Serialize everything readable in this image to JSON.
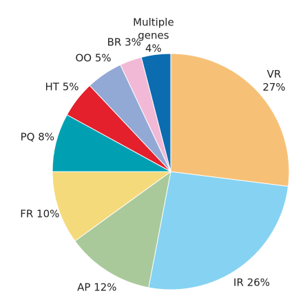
{
  "chart_data": {
    "type": "pie",
    "categories": [
      "VR",
      "IR",
      "AP",
      "FR",
      "PQ",
      "HT",
      "OO",
      "BR",
      "Multiple genes"
    ],
    "values": [
      27,
      26,
      12,
      10,
      8,
      5,
      5,
      3,
      4
    ],
    "value_labels": [
      "27%",
      "26%",
      "12%",
      "10%",
      "8%",
      "5%",
      "5%",
      "3%",
      "4%"
    ],
    "colors": [
      "#f6c177",
      "#86d2f2",
      "#a9c99b",
      "#f5da7c",
      "#00a0b2",
      "#e3202b",
      "#92a9d6",
      "#f1b9d6",
      "#0b6cb0"
    ]
  }
}
